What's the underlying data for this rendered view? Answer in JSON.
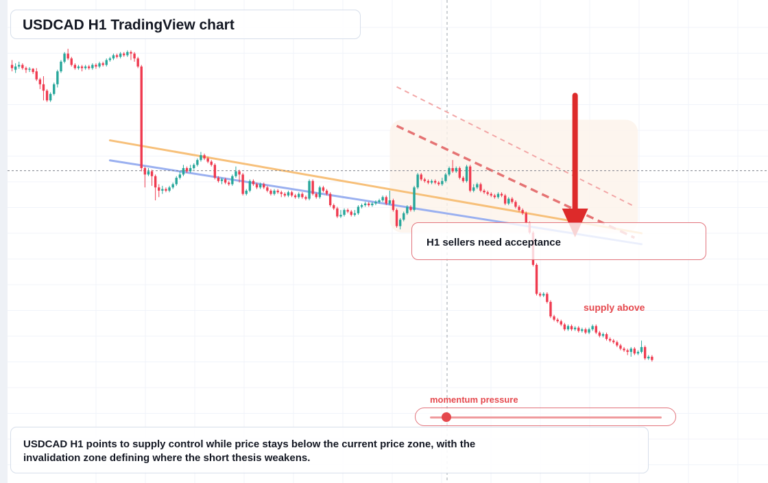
{
  "title": "USDCAD H1 TradingView chart",
  "callout": "H1 sellers need acceptance",
  "zone_label": "supply above",
  "momentum": {
    "label": "momentum pressure",
    "level": 0.07
  },
  "summary": "USDCAD H1 points to supply control while price stays below the current price zone, with the invalidation zone defining where the short thesis weakens.",
  "colors": {
    "bull": "#26a69a",
    "bear": "#ef3a4f",
    "accent": "#e5484d",
    "trend_orange": "#f7c07a",
    "trend_blue": "#9ab0f0",
    "supply_zone": "#fdf3ea"
  },
  "chart_data": {
    "type": "candlestick",
    "symbol": "USDCAD",
    "timeframe": "H1",
    "candles": [
      [
        52.0,
        51.0,
        50.0,
        53.5
      ],
      [
        50.5,
        51.5,
        49.5,
        52.5
      ],
      [
        51.5,
        52.0,
        50.8,
        53.0
      ],
      [
        52.0,
        51.0,
        50.5,
        52.5
      ],
      [
        51.0,
        50.5,
        49.5,
        51.5
      ],
      [
        50.5,
        50.8,
        49.8,
        51.3
      ],
      [
        50.8,
        49.8,
        49.2,
        51.0
      ],
      [
        50.0,
        47.5,
        47.0,
        51.0
      ],
      [
        47.5,
        46.0,
        44.5,
        48.0
      ],
      [
        46.0,
        44.0,
        41.0,
        48.5
      ],
      [
        44.0,
        41.0,
        40.5,
        44.5
      ],
      [
        41.0,
        43.0,
        40.5,
        43.5
      ],
      [
        43.0,
        46.0,
        42.5,
        46.5
      ],
      [
        46.0,
        50.0,
        45.0,
        50.5
      ],
      [
        50.0,
        53.0,
        49.5,
        53.5
      ],
      [
        53.0,
        55.5,
        52.5,
        56.0
      ],
      [
        55.5,
        54.0,
        53.5,
        57.0
      ],
      [
        54.0,
        52.0,
        51.5,
        54.5
      ],
      [
        52.0,
        51.0,
        50.5,
        52.5
      ],
      [
        51.0,
        51.5,
        50.5,
        52.0
      ],
      [
        51.5,
        51.0,
        50.0,
        52.0
      ],
      [
        51.0,
        51.5,
        50.5,
        52.0
      ],
      [
        51.5,
        51.0,
        50.5,
        52.0
      ],
      [
        51.0,
        52.0,
        50.5,
        52.5
      ],
      [
        52.0,
        51.5,
        50.8,
        52.5
      ],
      [
        51.5,
        52.5,
        51.0,
        53.0
      ],
      [
        52.5,
        52.0,
        51.5,
        53.0
      ],
      [
        52.0,
        53.5,
        51.5,
        54.0
      ],
      [
        53.5,
        54.0,
        53.0,
        54.5
      ],
      [
        54.0,
        55.0,
        53.5,
        55.5
      ],
      [
        55.0,
        54.5,
        54.0,
        55.5
      ],
      [
        54.5,
        55.5,
        54.0,
        56.0
      ],
      [
        55.5,
        55.0,
        54.5,
        56.0
      ],
      [
        55.0,
        56.0,
        54.5,
        56.5
      ],
      [
        56.0,
        55.5,
        53.5,
        56.5
      ],
      [
        55.5,
        54.0,
        53.0,
        56.0
      ],
      [
        54.0,
        51.5,
        51.0,
        54.5
      ],
      [
        51.5,
        20.0,
        19.0,
        52.0
      ],
      [
        20.0,
        18.0,
        14.0,
        20.5
      ],
      [
        18.0,
        19.0,
        17.5,
        20.0
      ],
      [
        19.0,
        17.5,
        14.5,
        19.5
      ],
      [
        17.5,
        14.0,
        10.0,
        18.0
      ],
      [
        14.0,
        13.0,
        11.0,
        15.0
      ],
      [
        13.0,
        13.5,
        12.0,
        14.5
      ],
      [
        13.5,
        13.0,
        12.5,
        14.0
      ],
      [
        13.0,
        14.0,
        12.5,
        14.5
      ],
      [
        14.0,
        15.0,
        13.5,
        15.5
      ],
      [
        15.0,
        17.0,
        14.5,
        17.5
      ],
      [
        17.0,
        18.0,
        16.5,
        19.0
      ],
      [
        18.0,
        20.0,
        17.5,
        21.0
      ],
      [
        20.0,
        19.0,
        18.5,
        20.5
      ],
      [
        19.0,
        20.0,
        18.5,
        21.0
      ],
      [
        20.0,
        21.0,
        19.5,
        21.5
      ],
      [
        21.0,
        22.5,
        20.5,
        23.0
      ],
      [
        22.5,
        24.0,
        22.0,
        25.0
      ],
      [
        24.0,
        23.0,
        22.5,
        24.5
      ],
      [
        23.0,
        22.0,
        21.5,
        23.5
      ],
      [
        22.0,
        21.0,
        20.5,
        22.5
      ],
      [
        21.0,
        17.0,
        16.5,
        21.5
      ],
      [
        17.0,
        16.0,
        15.5,
        17.5
      ],
      [
        16.0,
        16.5,
        15.0,
        17.0
      ],
      [
        16.5,
        15.5,
        15.0,
        17.0
      ],
      [
        15.5,
        15.0,
        14.5,
        16.0
      ],
      [
        15.0,
        17.5,
        14.5,
        18.0
      ],
      [
        17.5,
        19.0,
        17.0,
        20.5
      ],
      [
        19.0,
        18.0,
        15.5,
        19.5
      ],
      [
        18.0,
        12.0,
        11.5,
        18.5
      ],
      [
        12.0,
        13.0,
        11.5,
        13.5
      ],
      [
        13.0,
        16.0,
        12.5,
        16.5
      ],
      [
        16.0,
        15.0,
        14.5,
        16.5
      ],
      [
        15.0,
        14.0,
        13.5,
        15.5
      ],
      [
        14.0,
        15.0,
        13.5,
        15.5
      ],
      [
        15.0,
        14.0,
        13.5,
        15.5
      ],
      [
        14.0,
        13.0,
        12.5,
        14.5
      ],
      [
        13.0,
        12.0,
        11.5,
        13.5
      ],
      [
        12.0,
        13.0,
        11.5,
        13.5
      ],
      [
        13.0,
        12.5,
        12.0,
        13.5
      ],
      [
        12.5,
        12.0,
        11.0,
        13.0
      ],
      [
        12.0,
        11.5,
        11.0,
        12.5
      ],
      [
        11.5,
        12.5,
        11.0,
        13.0
      ],
      [
        12.5,
        11.5,
        11.0,
        13.0
      ],
      [
        11.5,
        11.0,
        10.5,
        12.0
      ],
      [
        11.0,
        12.0,
        10.5,
        12.5
      ],
      [
        12.0,
        11.0,
        10.5,
        12.5
      ],
      [
        11.0,
        10.5,
        10.0,
        11.5
      ],
      [
        10.5,
        16.0,
        10.0,
        16.5
      ],
      [
        16.0,
        12.0,
        11.5,
        16.5
      ],
      [
        12.0,
        11.0,
        10.5,
        12.5
      ],
      [
        11.0,
        14.0,
        10.5,
        14.5
      ],
      [
        14.0,
        13.0,
        12.5,
        14.5
      ],
      [
        13.0,
        12.0,
        11.5,
        13.5
      ],
      [
        12.0,
        8.5,
        8.0,
        12.5
      ],
      [
        8.5,
        7.5,
        7.0,
        9.0
      ],
      [
        7.5,
        5.0,
        4.5,
        8.0
      ],
      [
        5.0,
        5.5,
        4.5,
        7.0
      ],
      [
        5.5,
        7.0,
        5.0,
        7.5
      ],
      [
        7.0,
        6.5,
        6.0,
        7.5
      ],
      [
        6.5,
        5.5,
        5.0,
        7.0
      ],
      [
        5.5,
        6.0,
        5.0,
        7.0
      ],
      [
        6.0,
        8.0,
        5.5,
        8.5
      ],
      [
        8.0,
        8.5,
        7.5,
        9.0
      ],
      [
        8.5,
        9.0,
        8.0,
        9.5
      ],
      [
        9.0,
        8.5,
        8.0,
        9.5
      ],
      [
        8.5,
        9.0,
        8.0,
        9.5
      ],
      [
        9.0,
        9.5,
        8.5,
        10.0
      ],
      [
        9.5,
        10.0,
        9.0,
        10.5
      ],
      [
        10.0,
        11.0,
        9.5,
        11.5
      ],
      [
        11.0,
        9.0,
        8.5,
        11.5
      ],
      [
        9.0,
        10.0,
        8.5,
        13.0
      ],
      [
        10.0,
        7.0,
        6.5,
        10.5
      ],
      [
        7.0,
        2.0,
        1.5,
        7.5
      ],
      [
        2.0,
        4.0,
        1.0,
        4.5
      ],
      [
        4.0,
        6.0,
        3.5,
        6.5
      ],
      [
        6.0,
        8.0,
        5.5,
        8.5
      ],
      [
        8.0,
        7.0,
        6.5,
        8.5
      ],
      [
        7.0,
        14.0,
        6.5,
        14.5
      ],
      [
        14.0,
        18.0,
        13.5,
        18.5
      ],
      [
        18.0,
        16.5,
        16.0,
        18.5
      ],
      [
        16.5,
        16.0,
        15.5,
        17.0
      ],
      [
        16.0,
        15.5,
        15.0,
        16.5
      ],
      [
        15.5,
        16.0,
        15.0,
        16.5
      ],
      [
        16.0,
        15.5,
        15.0,
        16.5
      ],
      [
        15.5,
        15.0,
        14.5,
        16.0
      ],
      [
        15.0,
        16.0,
        14.5,
        17.0
      ],
      [
        16.0,
        18.0,
        15.5,
        18.5
      ],
      [
        18.0,
        20.0,
        17.5,
        20.5
      ],
      [
        20.0,
        19.0,
        18.5,
        22.5
      ],
      [
        19.0,
        20.0,
        18.5,
        20.5
      ],
      [
        20.0,
        17.0,
        16.5,
        20.5
      ],
      [
        17.0,
        16.0,
        15.5,
        17.5
      ],
      [
        16.0,
        20.5,
        15.5,
        21.0
      ],
      [
        20.5,
        13.0,
        12.5,
        21.0
      ],
      [
        13.0,
        14.0,
        12.5,
        15.0
      ],
      [
        14.0,
        15.0,
        13.5,
        15.5
      ],
      [
        15.0,
        13.0,
        12.5,
        15.5
      ],
      [
        13.0,
        12.5,
        12.0,
        13.5
      ],
      [
        12.5,
        12.0,
        11.5,
        13.0
      ],
      [
        12.0,
        11.5,
        11.0,
        12.5
      ],
      [
        11.5,
        11.0,
        10.5,
        12.0
      ],
      [
        11.0,
        12.0,
        10.5,
        12.5
      ],
      [
        12.0,
        11.5,
        11.0,
        12.5
      ],
      [
        11.5,
        9.0,
        8.5,
        12.0
      ],
      [
        9.0,
        10.5,
        8.5,
        11.0
      ],
      [
        10.5,
        9.5,
        9.0,
        11.0
      ],
      [
        9.5,
        8.0,
        7.5,
        10.0
      ],
      [
        8.0,
        7.0,
        6.5,
        8.5
      ],
      [
        7.0,
        6.0,
        5.5,
        7.5
      ],
      [
        6.0,
        3.0,
        2.5,
        6.5
      ],
      [
        3.0,
        0.0,
        -0.5,
        3.5
      ],
      [
        0.0,
        -10.0,
        -10.5,
        0.5
      ],
      [
        -10.0,
        -19.0,
        -19.5,
        -9.5
      ],
      [
        -19.0,
        -19.5,
        -20.0,
        -18.5
      ],
      [
        -19.5,
        -19.0,
        -20.0,
        -18.5
      ],
      [
        -19.0,
        -21.5,
        -22.0,
        -18.5
      ],
      [
        -21.5,
        -26.0,
        -26.5,
        -21.0
      ],
      [
        -26.0,
        -27.0,
        -27.5,
        -25.5
      ],
      [
        -27.0,
        -27.5,
        -28.0,
        -26.5
      ],
      [
        -27.5,
        -28.5,
        -29.0,
        -27.0
      ],
      [
        -28.5,
        -30.0,
        -30.5,
        -28.0
      ],
      [
        -30.0,
        -29.0,
        -30.5,
        -28.5
      ],
      [
        -29.0,
        -30.0,
        -30.5,
        -28.5
      ],
      [
        -30.0,
        -29.5,
        -30.5,
        -29.0
      ],
      [
        -29.5,
        -30.5,
        -31.0,
        -29.0
      ],
      [
        -30.5,
        -30.0,
        -31.0,
        -29.5
      ],
      [
        -30.0,
        -31.0,
        -31.5,
        -29.5
      ],
      [
        -31.0,
        -30.0,
        -31.5,
        -29.5
      ],
      [
        -30.0,
        -29.0,
        -30.5,
        -28.5
      ],
      [
        -29.0,
        -31.0,
        -31.5,
        -28.5
      ],
      [
        -31.0,
        -32.0,
        -32.5,
        -30.5
      ],
      [
        -32.0,
        -31.5,
        -32.5,
        -31.0
      ],
      [
        -31.5,
        -33.0,
        -33.5,
        -31.0
      ],
      [
        -33.0,
        -33.5,
        -34.0,
        -32.5
      ],
      [
        -33.5,
        -34.0,
        -34.5,
        -33.0
      ],
      [
        -34.0,
        -35.0,
        -35.5,
        -33.5
      ],
      [
        -35.0,
        -36.0,
        -36.5,
        -34.5
      ],
      [
        -36.0,
        -36.5,
        -37.0,
        -35.5
      ],
      [
        -36.5,
        -37.0,
        -38.0,
        -36.0
      ],
      [
        -37.0,
        -36.0,
        -38.5,
        -35.5
      ],
      [
        -36.0,
        -37.5,
        -38.0,
        -35.5
      ],
      [
        -37.5,
        -37.0,
        -38.0,
        -36.5
      ],
      [
        -37.0,
        -35.5,
        -37.5,
        -33.5
      ],
      [
        -35.5,
        -39.0,
        -39.5,
        -35.0
      ],
      [
        -39.0,
        -38.5,
        -39.5,
        -38.0
      ],
      [
        -38.5,
        -39.5,
        -40.0,
        -38.0
      ]
    ],
    "supply_zone": {
      "from_candle": 110,
      "to_candle": 177,
      "low": 0,
      "high": 35
    },
    "trendlines": [
      {
        "from": [
          28,
          28.6
        ],
        "to": [
          180,
          -0.2
        ]
      },
      {
        "from": [
          28,
          22.4
        ],
        "to": [
          180,
          -3.6
        ]
      }
    ],
    "projection_lines": [
      {
        "from": [
          110,
          45.2
        ],
        "to": [
          178,
          8.1
        ]
      },
      {
        "from": [
          110,
          33.1
        ],
        "to": [
          178,
          -1.6
        ]
      }
    ],
    "current_price": 19.2,
    "arrow": {
      "candle": 161,
      "from": 42.5,
      "to": -1.5
    }
  }
}
